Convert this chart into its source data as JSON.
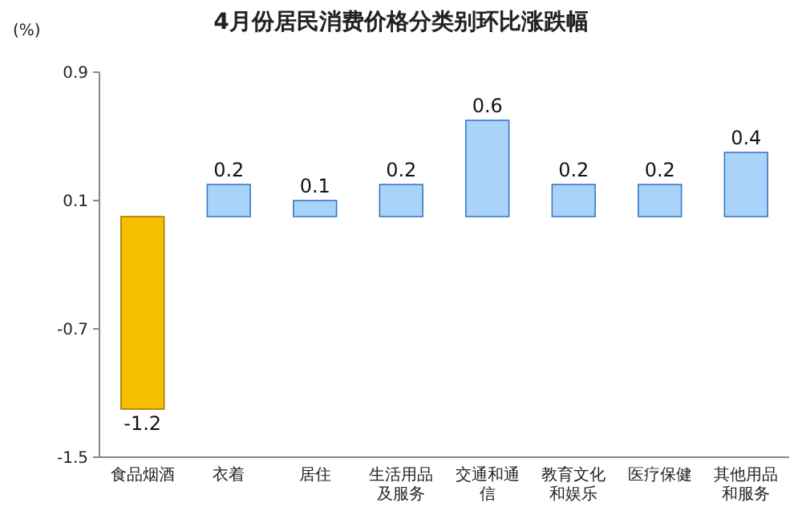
{
  "chart_data": {
    "type": "bar",
    "title": "4月份居民消费价格分类别环比涨跌幅",
    "ylabel": "(%)",
    "categories": [
      "食品烟酒",
      "衣着",
      "居住",
      "生活用品及服务",
      "交通和通信",
      "教育文化和娱乐",
      "医疗保健",
      "其他用品和服务"
    ],
    "values": [
      -1.2,
      0.2,
      0.1,
      0.2,
      0.6,
      0.2,
      0.2,
      0.4
    ],
    "colors": [
      "#f5bf00",
      "#a9d3fb",
      "#a9d3fb",
      "#a9d3fb",
      "#a9d3fb",
      "#a9d3fb",
      "#a9d3fb",
      "#a9d3fb"
    ],
    "ylim": [
      -1.5,
      0.9
    ],
    "yticks": [
      -1.5,
      -0.7,
      0.1,
      0.9
    ],
    "data_labels": true
  }
}
